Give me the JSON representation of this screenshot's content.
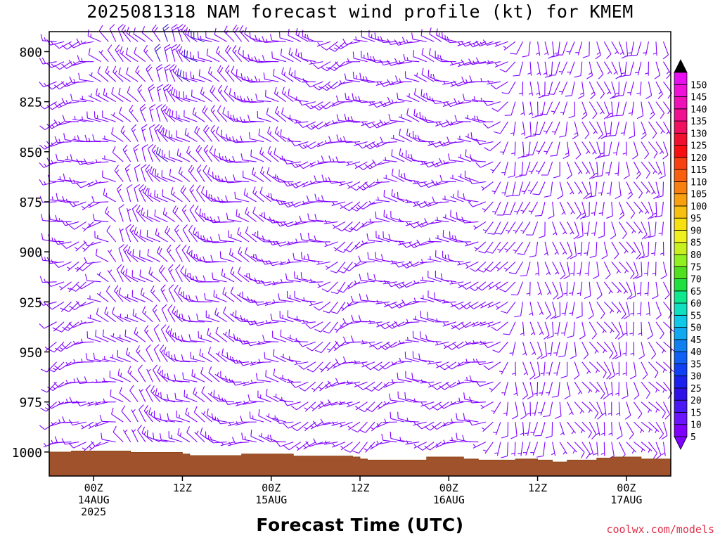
{
  "title": "2025081318 NAM forecast wind profile (kt) for KMEM",
  "xlabel": "Forecast Time (UTC)",
  "credit": "coolwx.com/models",
  "chart_data": {
    "type": "wind-barb-time-height",
    "y_axis": {
      "label": "",
      "ticks": [
        800,
        825,
        850,
        875,
        900,
        925,
        950,
        975,
        1000
      ],
      "range_hpa": [
        790,
        1012
      ]
    },
    "x_axis": {
      "ticks": [
        {
          "hour": 6,
          "lines": [
            "00Z",
            "14AUG",
            "2025"
          ]
        },
        {
          "hour": 18,
          "lines": [
            "12Z"
          ]
        },
        {
          "hour": 30,
          "lines": [
            "00Z",
            "15AUG"
          ]
        },
        {
          "hour": 42,
          "lines": [
            "12Z"
          ]
        },
        {
          "hour": 54,
          "lines": [
            "00Z",
            "16AUG"
          ]
        },
        {
          "hour": 66,
          "lines": [
            "12Z"
          ]
        },
        {
          "hour": 78,
          "lines": [
            "00Z",
            "17AUG"
          ]
        }
      ],
      "range_hours": [
        0,
        84
      ]
    },
    "levels_hpa": [
      795,
      805,
      815,
      825,
      835,
      845,
      855,
      865,
      875,
      885,
      895,
      905,
      915,
      925,
      935,
      945,
      955,
      965,
      975,
      985,
      995
    ],
    "timeline": [
      {
        "hour": 0,
        "dir": 265,
        "speed": 15
      },
      {
        "hour": 6,
        "dir": 260,
        "speed": 10
      },
      {
        "hour": 10,
        "dir": 330,
        "speed": 12
      },
      {
        "hour": 16,
        "dir": 325,
        "speed": 18
      },
      {
        "hour": 24,
        "dir": 300,
        "speed": 15
      },
      {
        "hour": 32,
        "dir": 290,
        "speed": 12
      },
      {
        "hour": 40,
        "dir": 250,
        "speed": 10
      },
      {
        "hour": 48,
        "dir": 280,
        "speed": 12
      },
      {
        "hour": 58,
        "dir": 275,
        "speed": 10
      },
      {
        "hour": 64,
        "dir": 200,
        "speed": 8
      },
      {
        "hour": 72,
        "dir": 175,
        "speed": 10
      },
      {
        "hour": 84,
        "dir": 170,
        "speed": 10
      }
    ],
    "terrain": [
      {
        "hour": 0,
        "pressure": 1000
      },
      {
        "hour": 3,
        "pressure": 999.5
      },
      {
        "hour": 10,
        "pressure": 999.5
      },
      {
        "hour": 11,
        "pressure": 1000.2
      },
      {
        "hour": 17,
        "pressure": 1000.2
      },
      {
        "hour": 18,
        "pressure": 1001
      },
      {
        "hour": 19,
        "pressure": 1001.8
      },
      {
        "hour": 25,
        "pressure": 1001.8
      },
      {
        "hour": 26,
        "pressure": 1001
      },
      {
        "hour": 32,
        "pressure": 1001
      },
      {
        "hour": 33,
        "pressure": 1002
      },
      {
        "hour": 41,
        "pressure": 1002.5
      },
      {
        "hour": 42,
        "pressure": 1003.5
      },
      {
        "hour": 43,
        "pressure": 1004
      },
      {
        "hour": 50,
        "pressure": 1004
      },
      {
        "hour": 51,
        "pressure": 1002.5
      },
      {
        "hour": 55,
        "pressure": 1002.5
      },
      {
        "hour": 56,
        "pressure": 1003.5
      },
      {
        "hour": 58,
        "pressure": 1004
      },
      {
        "hour": 62,
        "pressure": 1004
      },
      {
        "hour": 63,
        "pressure": 1003.5
      },
      {
        "hour": 65,
        "pressure": 1003.5
      },
      {
        "hour": 66,
        "pressure": 1004
      },
      {
        "hour": 68,
        "pressure": 1005
      },
      {
        "hour": 70,
        "pressure": 1004
      },
      {
        "hour": 73,
        "pressure": 1004
      },
      {
        "hour": 74,
        "pressure": 1003
      },
      {
        "hour": 76,
        "pressure": 1002.5
      },
      {
        "hour": 79,
        "pressure": 1002.5
      },
      {
        "hour": 80,
        "pressure": 1003.5
      },
      {
        "hour": 84,
        "pressure": 1003.5
      }
    ],
    "colorbar": {
      "labels": [
        5,
        10,
        15,
        20,
        25,
        30,
        35,
        40,
        45,
        50,
        55,
        60,
        65,
        70,
        75,
        80,
        85,
        90,
        95,
        100,
        105,
        110,
        115,
        120,
        125,
        130,
        135,
        140,
        145,
        150
      ],
      "colors": [
        "#7f00ff",
        "#6a14ff",
        "#4a18f5",
        "#3010e8",
        "#1a20f0",
        "#1040f5",
        "#1060f5",
        "#1080f0",
        "#10a8f0",
        "#10c8e8",
        "#10e0c0",
        "#10e890",
        "#20e040",
        "#50e020",
        "#90f020",
        "#c8f020",
        "#f0f020",
        "#f8e010",
        "#f8c010",
        "#f8a010",
        "#f88010",
        "#f86010",
        "#f84010",
        "#f81010",
        "#f01030",
        "#f01060",
        "#f01090",
        "#f010b8",
        "#f010d8",
        "#e810f0"
      ],
      "top_color": "#000000",
      "bottom_color": "#7f00ff"
    },
    "barb_color": "#7f00ff",
    "barb_color_strong": "#3010c8",
    "terrain_color": "#a0522d"
  }
}
